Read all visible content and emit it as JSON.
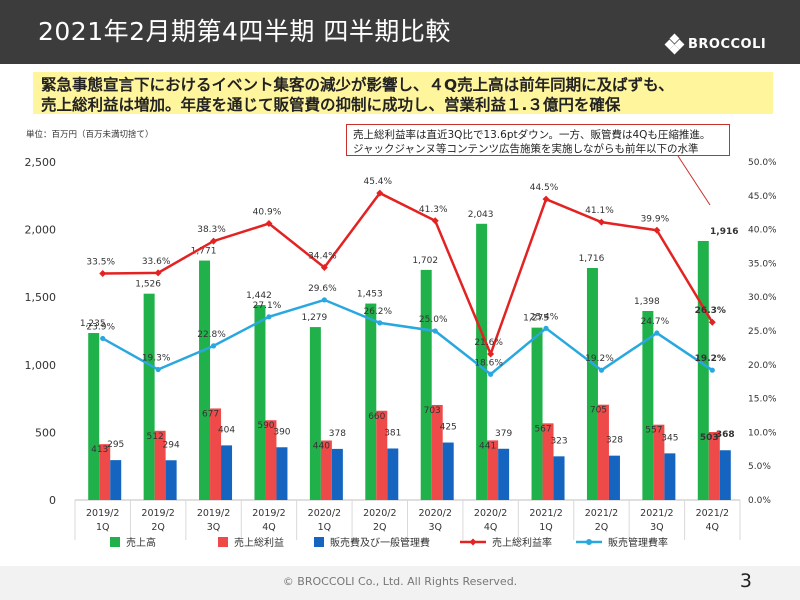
{
  "header": {
    "title": "2021年2月期第4四半期 四半期比較",
    "brand": "BROCCOLI"
  },
  "headline": {
    "line1": "緊急事態宣言下におけるイベント集客の減少が影響し、４Q売上高は前年同期に及ばずも、",
    "line2": "売上総利益は増加。年度を通じて販管費の抑制に成功し、営業利益１.３億円を確保"
  },
  "unit_note": "単位：百万円（百万未満切捨て）",
  "callout": {
    "line1": "売上総利益率は直近3Q比で13.6ptダウン。一方、販管費は4Qも圧縮推進。",
    "line2": "ジャックジャンヌ等コンテンツ広告施策を実施しながらも前年以下の水準"
  },
  "colors": {
    "sales": "#21b14b",
    "gross_profit": "#ef4a4a",
    "sga": "#1565c0",
    "gp_rate": "#e32222",
    "sga_rate": "#29a8e0"
  },
  "chart_data": {
    "type": "bar",
    "categories": [
      [
        "2019/2",
        "1Q"
      ],
      [
        "2019/2",
        "2Q"
      ],
      [
        "2019/2",
        "3Q"
      ],
      [
        "2019/2",
        "4Q"
      ],
      [
        "2020/2",
        "1Q"
      ],
      [
        "2020/2",
        "2Q"
      ],
      [
        "2020/2",
        "3Q"
      ],
      [
        "2020/2",
        "4Q"
      ],
      [
        "2021/2",
        "1Q"
      ],
      [
        "2021/2",
        "2Q"
      ],
      [
        "2021/2",
        "3Q"
      ],
      [
        "2021/2",
        "4Q"
      ]
    ],
    "series": [
      {
        "name": "売上高",
        "type": "bar",
        "axis": "left",
        "values": [
          1235,
          1526,
          1771,
          1442,
          1279,
          1453,
          1702,
          2043,
          1275,
          1716,
          1398,
          1916
        ],
        "labels": [
          "1,235",
          "1,526",
          "1,771",
          "1,442",
          "1,279",
          "1,453",
          "1,702",
          "2,043",
          "1,275",
          "1,716",
          "1,398",
          "1,916"
        ]
      },
      {
        "name": "売上総利益",
        "type": "bar",
        "axis": "left",
        "values": [
          413,
          512,
          677,
          590,
          440,
          660,
          703,
          441,
          567,
          705,
          557,
          503
        ],
        "labels": [
          "413",
          "512",
          "677",
          "590",
          "440",
          "660",
          "703",
          "441",
          "567",
          "705",
          "557",
          "503"
        ]
      },
      {
        "name": "販売費及び一般管理費",
        "type": "bar",
        "axis": "left",
        "values": [
          295,
          294,
          404,
          390,
          378,
          381,
          425,
          379,
          323,
          328,
          345,
          368
        ],
        "labels": [
          "295",
          "294",
          "404",
          "390",
          "378",
          "381",
          "425",
          "379",
          "323",
          "328",
          "345",
          "368"
        ]
      },
      {
        "name": "売上総利益率",
        "type": "line",
        "axis": "right",
        "values": [
          33.5,
          33.6,
          38.3,
          40.9,
          34.4,
          45.4,
          41.3,
          21.6,
          44.5,
          41.1,
          39.9,
          26.3
        ],
        "labels": [
          "33.5%",
          "33.6%",
          "38.3%",
          "40.9%",
          "34.4%",
          "45.4%",
          "41.3%",
          "21.6%",
          "44.5%",
          "41.1%",
          "39.9%",
          "26.3%"
        ]
      },
      {
        "name": "販売管理費率",
        "type": "line",
        "axis": "right",
        "values": [
          23.9,
          19.3,
          22.8,
          27.1,
          29.6,
          26.2,
          25.0,
          18.6,
          25.4,
          19.2,
          24.7,
          19.2
        ],
        "labels": [
          "23.9%",
          "19.3%",
          "22.8%",
          "27.1%",
          "29.6%",
          "26.2%",
          "25.0%",
          "18.6%",
          "25.4%",
          "19.2%",
          "24.7%",
          "19.2%"
        ]
      }
    ],
    "y_left": {
      "min": 0,
      "max": 2500,
      "ticks": [
        "0",
        "500",
        "1,000",
        "1,500",
        "2,000",
        "2,500"
      ]
    },
    "y_right": {
      "min": 0,
      "max": 50,
      "ticks": [
        "0.0%",
        "5.0%",
        "10.0%",
        "15.0%",
        "20.0%",
        "25.0%",
        "30.0%",
        "35.0%",
        "40.0%",
        "45.0%",
        "50.0%"
      ]
    },
    "legend_position": "bottom",
    "grid": false,
    "highlight_last": true
  },
  "footer": {
    "copyright": "© BROCCOLI Co., Ltd. All Rights Reserved.",
    "page": "3"
  }
}
